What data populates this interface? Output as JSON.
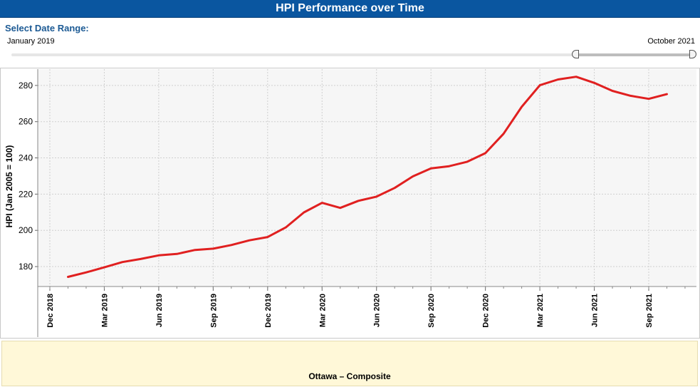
{
  "header": {
    "title": "HPI Performance over Time"
  },
  "date_range": {
    "label": "Select Date Range:",
    "start": "January 2019",
    "end": "October 2021"
  },
  "footer": {
    "series_label": "Ottawa – Composite"
  },
  "colors": {
    "line": "#e02020",
    "title_bg": "#0a56a0",
    "plot_bg": "#f6f6f6"
  },
  "chart_data": {
    "type": "line",
    "title": "HPI Performance over Time",
    "ylabel": "HPI (Jan 2005 = 100)",
    "xlabel": "",
    "ylim": [
      169,
      289
    ],
    "yticks": [
      180,
      200,
      220,
      240,
      260,
      280
    ],
    "xticks": [
      "Dec 2018",
      "Mar 2019",
      "Jun 2019",
      "Sep 2019",
      "Dec 2019",
      "Mar 2020",
      "Jun 2020",
      "Sep 2020",
      "Dec 2020",
      "Mar 2021",
      "Jun 2021",
      "Sep 2021"
    ],
    "grid": true,
    "series": [
      {
        "name": "Ottawa – Composite",
        "x": [
          "Jan 2019",
          "Feb 2019",
          "Mar 2019",
          "Apr 2019",
          "May 2019",
          "Jun 2019",
          "Jul 2019",
          "Aug 2019",
          "Sep 2019",
          "Oct 2019",
          "Nov 2019",
          "Dec 2019",
          "Jan 2020",
          "Feb 2020",
          "Mar 2020",
          "Apr 2020",
          "May 2020",
          "Jun 2020",
          "Jul 2020",
          "Aug 2020",
          "Sep 2020",
          "Oct 2020",
          "Nov 2020",
          "Dec 2020",
          "Jan 2021",
          "Feb 2021",
          "Mar 2021",
          "Apr 2021",
          "May 2021",
          "Jun 2021",
          "Jul 2021",
          "Aug 2021",
          "Sep 2021",
          "Oct 2021"
        ],
        "values": [
          174.3,
          176.8,
          179.6,
          182.5,
          184.2,
          186.2,
          187.0,
          189.2,
          189.9,
          191.9,
          194.5,
          196.3,
          201.6,
          209.9,
          215.2,
          212.4,
          216.3,
          218.6,
          223.4,
          229.8,
          234.2,
          235.4,
          237.9,
          242.6,
          253.3,
          268.2,
          280.1,
          283.3,
          284.8,
          281.4,
          277.0,
          274.3,
          272.6,
          275.2
        ]
      }
    ]
  }
}
